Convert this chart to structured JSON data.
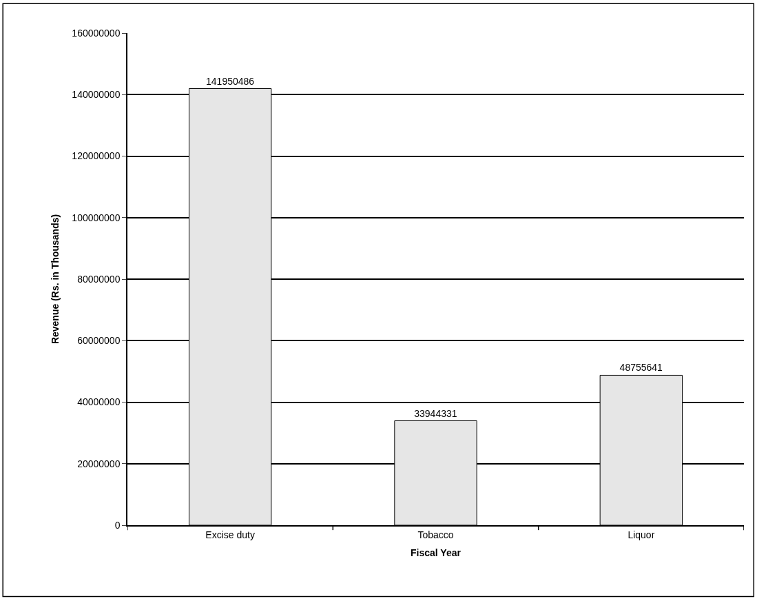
{
  "chart_data": {
    "type": "bar",
    "xlabel": "Fiscal Year",
    "ylabel": "Revenue (Rs. in Thousands)",
    "categories": [
      "Excise duty",
      "Tobacco",
      "Liquor"
    ],
    "values": [
      141950486,
      33944331,
      48755641
    ],
    "color": "#e6e6e6",
    "ylim": [
      0,
      160000000
    ],
    "yticks": [
      0,
      20000000,
      40000000,
      60000000,
      80000000,
      100000000,
      120000000,
      140000000,
      160000000
    ],
    "grid": "y",
    "data_labels": true
  }
}
